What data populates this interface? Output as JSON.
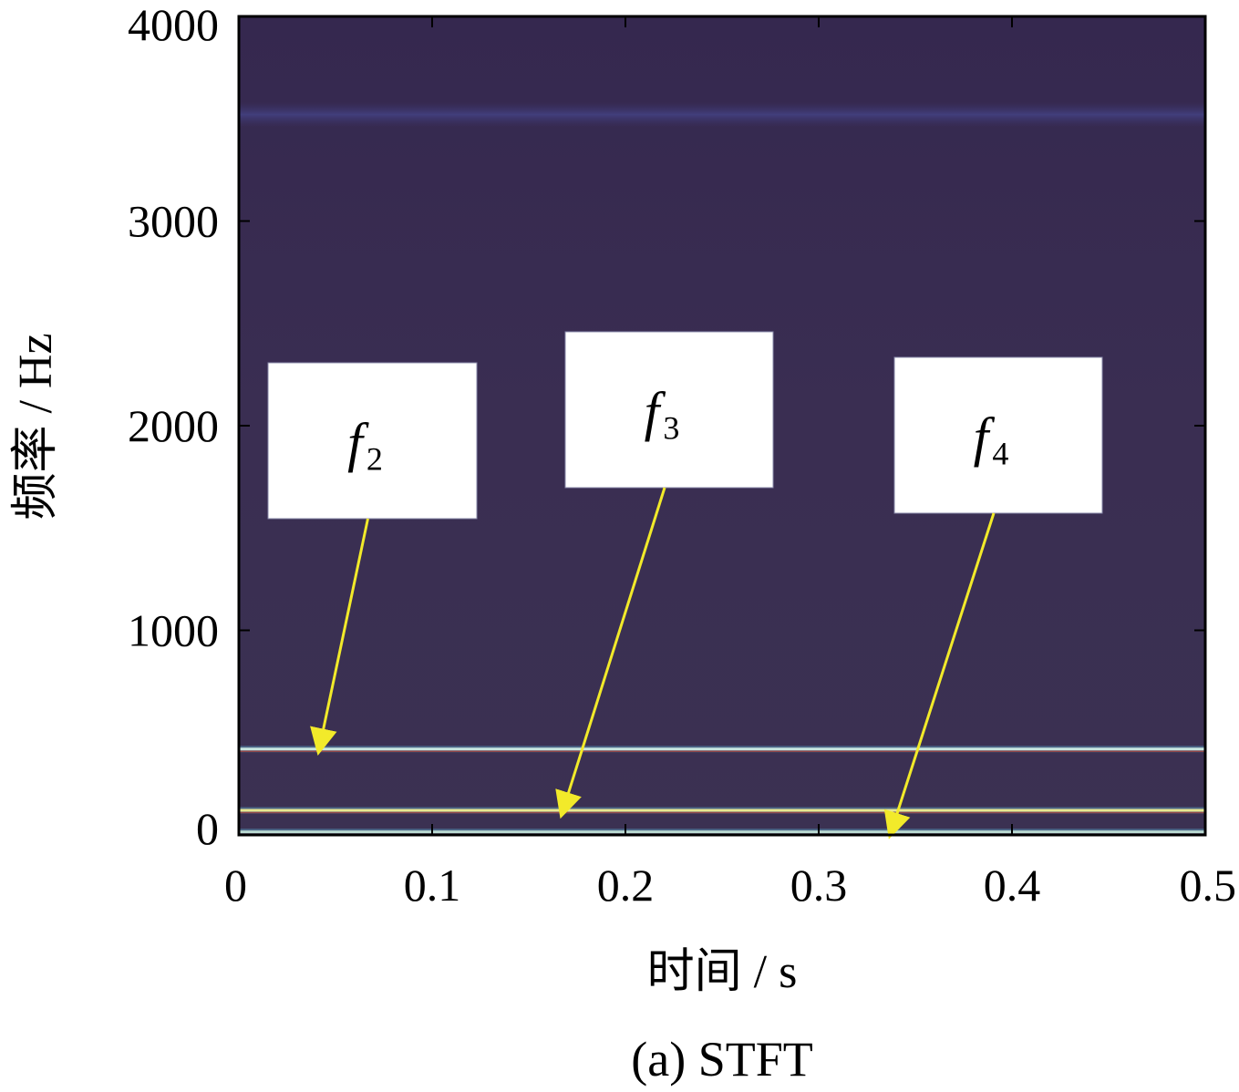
{
  "chart_data": {
    "type": "heatmap",
    "title": "",
    "caption": "(a) STFT",
    "xlabel": "时间 / s",
    "ylabel": "频率 / Hz",
    "xlim": [
      0,
      0.5
    ],
    "ylim": [
      0,
      4000
    ],
    "x_ticks": [
      0,
      0.1,
      0.2,
      0.3,
      0.4,
      0.5
    ],
    "x_tick_labels": [
      "0",
      "0.1",
      "0.2",
      "0.3",
      "0.4",
      "0.5"
    ],
    "y_ticks": [
      0,
      1000,
      2000,
      3000,
      4000
    ],
    "y_tick_labels": [
      "0",
      "1000",
      "2000",
      "3000",
      "4000"
    ],
    "colormap_background": "#3a2f4f",
    "spectral_lines": [
      {
        "frequency_hz": 420,
        "color": "#c8e6e0"
      },
      {
        "frequency_hz": 120,
        "color": "#e8e890"
      },
      {
        "frequency_hz": 15,
        "color": "#b8d8d0"
      }
    ],
    "faint_band_hz": 3520,
    "annotations": [
      {
        "symbol": "f",
        "subscript": "2",
        "arrow_target": {
          "x": 0.042,
          "y": 440
        }
      },
      {
        "symbol": "f",
        "subscript": "3",
        "arrow_target": {
          "x": 0.168,
          "y": 130
        }
      },
      {
        "symbol": "f",
        "subscript": "4",
        "arrow_target": {
          "x": 0.338,
          "y": 30
        }
      }
    ],
    "arrow_color": "#f2ea2a"
  }
}
